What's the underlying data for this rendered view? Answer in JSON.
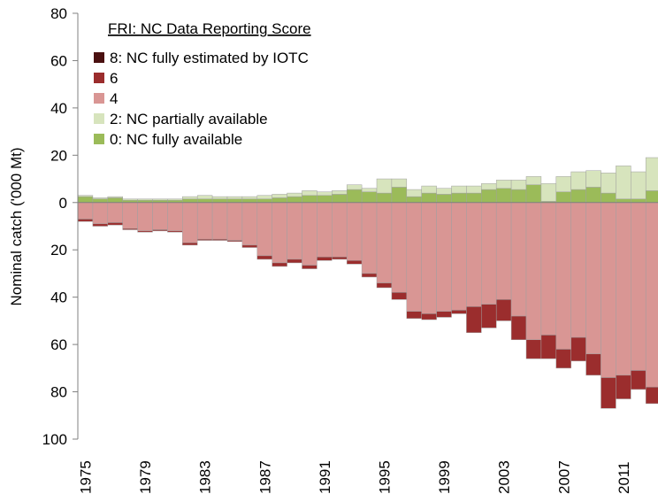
{
  "chart_data": {
    "type": "bar",
    "stacked": true,
    "y_label": "Nominal catch ('000 Mt)",
    "legend_title": "FRI: NC Data Reporting Score",
    "legend": "upper left",
    "negative_tick_color": "#ff0000",
    "categories": [
      "1975",
      null,
      null,
      null,
      "1979",
      null,
      null,
      null,
      "1983",
      null,
      null,
      null,
      "1987",
      null,
      null,
      null,
      "1991",
      null,
      null,
      null,
      "1995",
      null,
      null,
      null,
      "1999",
      null,
      null,
      null,
      "2003",
      null,
      null,
      null,
      "2007",
      null,
      null,
      null,
      "2011",
      null,
      null
    ],
    "ylim": [
      -100,
      80
    ],
    "yticks": [
      80,
      60,
      40,
      20,
      0,
      {
        "value": -20,
        "label": "20"
      },
      {
        "value": -40,
        "label": "40"
      },
      {
        "value": -60,
        "label": "60"
      },
      {
        "value": -80,
        "label": "80"
      },
      {
        "value": -100,
        "label": "100"
      }
    ],
    "series": [
      {
        "name": "8: NC fully estimated by IOTC",
        "color": "#4a1010",
        "values": [
          0,
          0,
          0,
          0,
          0,
          0,
          0,
          0,
          0,
          0,
          0,
          0,
          0,
          0,
          0,
          0,
          0,
          0,
          0,
          0,
          0,
          0,
          0,
          0,
          0,
          0,
          0,
          0,
          0,
          0,
          0,
          0,
          0,
          0,
          0,
          0,
          0,
          0,
          0
        ]
      },
      {
        "name": "6",
        "color": "#9b2d2d",
        "values": [
          -1,
          -1,
          -1,
          -0.5,
          -0.5,
          -0.5,
          -0.5,
          -1,
          -0.5,
          -0.5,
          -0.5,
          -1,
          -1.5,
          -1.5,
          -1.5,
          -1.5,
          -1.5,
          -1,
          -1.5,
          -1.5,
          -2,
          -3,
          -3,
          -2.5,
          -2.5,
          -1.5,
          -11,
          -10,
          -9,
          -10,
          -8,
          -10,
          -8,
          -10,
          -9,
          -13,
          -10,
          -8,
          -7
        ]
      },
      {
        "name": "4",
        "color": "#d99694",
        "values": [
          -7,
          -9,
          -8.5,
          -11,
          -12,
          -11.5,
          -12,
          -17,
          -15.5,
          -15.5,
          -16,
          -18,
          -22.5,
          -25.5,
          -24,
          -26.5,
          -23,
          -23,
          -24.5,
          -30,
          -34,
          -38,
          -46,
          -47,
          -46,
          -45.5,
          -44,
          -43,
          -41,
          -48,
          -58,
          -56,
          -62,
          -57,
          -64,
          -74,
          -73,
          -71,
          -78
        ]
      },
      {
        "name": "2: NC partially available",
        "color": "#d7e4bd",
        "values": [
          0.5,
          0.5,
          0.5,
          0.5,
          0.5,
          0.5,
          0.5,
          1,
          1.5,
          1,
          1,
          1,
          1.5,
          1.5,
          1.5,
          2,
          1.5,
          1.5,
          2,
          1.5,
          6,
          3.5,
          3,
          3,
          2.5,
          3,
          3,
          2.5,
          3.5,
          4,
          3.5,
          7.5,
          6.5,
          7.5,
          7,
          8.5,
          14,
          11.5,
          14
        ]
      },
      {
        "name": "0: NC fully available",
        "color": "#9bbb59",
        "values": [
          2.5,
          1.5,
          2,
          1,
          1,
          1,
          1,
          1.5,
          1.5,
          1.5,
          1.5,
          1.5,
          1.5,
          2,
          2.5,
          3,
          3,
          3.5,
          5.5,
          4.5,
          4,
          6.5,
          2.5,
          4,
          3.5,
          4,
          4,
          5.5,
          6,
          5.5,
          7.5,
          0.5,
          4.5,
          5.5,
          6.5,
          4,
          1.5,
          1.5,
          5
        ]
      }
    ]
  }
}
